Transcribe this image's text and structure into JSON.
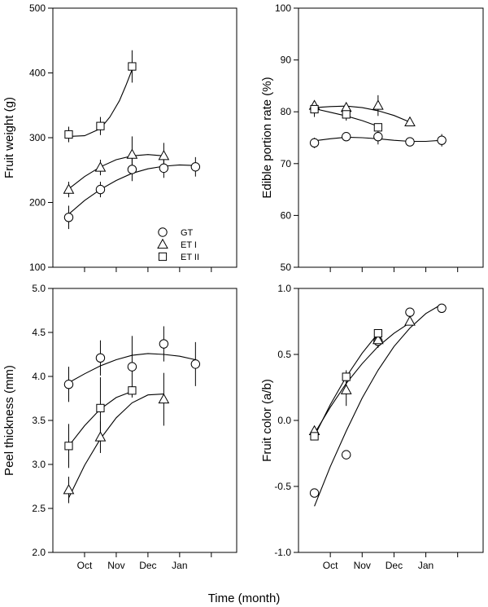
{
  "xlabel": "Time (month)",
  "legend": {
    "placement": "bottom-right of panel 1",
    "entries": [
      {
        "series": "GT",
        "marker": "circle"
      },
      {
        "series": "ET I",
        "marker": "triangle"
      },
      {
        "series": "ET II",
        "marker": "square"
      }
    ]
  },
  "chart_data": [
    {
      "type": "scatter",
      "ylabel": "Fruit weight (g)",
      "xlim": [
        0.5,
        6.3
      ],
      "ylim": [
        100,
        500
      ],
      "yticks": [
        100,
        200,
        300,
        400,
        500
      ],
      "xticks": [
        {
          "v": 1.5,
          "label": ""
        },
        {
          "v": 2.5,
          "label": ""
        },
        {
          "v": 3.5,
          "label": ""
        },
        {
          "v": 4.5,
          "label": ""
        },
        {
          "v": 5.5,
          "label": ""
        }
      ],
      "xticklabels": [],
      "series": [
        {
          "name": "GT",
          "marker": "circle",
          "x": [
            1,
            2,
            3,
            4,
            5
          ],
          "y": [
            177,
            220,
            251,
            253,
            255
          ],
          "err": [
            18,
            12,
            18,
            15,
            15
          ],
          "fit": [
            [
              1,
              182
            ],
            [
              1.5,
              203
            ],
            [
              2,
              220
            ],
            [
              2.5,
              234
            ],
            [
              3,
              245
            ],
            [
              3.5,
              252
            ],
            [
              4,
              256
            ],
            [
              4.5,
              258
            ],
            [
              5,
              257
            ]
          ]
        },
        {
          "name": "ET I",
          "marker": "triangle",
          "x": [
            1,
            2,
            3,
            4
          ],
          "y": [
            220,
            254,
            274,
            272
          ],
          "err": [
            12,
            12,
            28,
            20
          ],
          "fit": [
            [
              1,
              221
            ],
            [
              1.5,
              240
            ],
            [
              2,
              255
            ],
            [
              2.5,
              266
            ],
            [
              3,
              272
            ],
            [
              3.5,
              274
            ],
            [
              4,
              272
            ]
          ]
        },
        {
          "name": "ET II",
          "marker": "square",
          "x": [
            1,
            2,
            3
          ],
          "y": [
            305,
            318,
            410
          ],
          "err": [
            12,
            14,
            25
          ],
          "fit": [
            [
              1,
              302
            ],
            [
              1.5,
              303
            ],
            [
              2,
              314
            ],
            [
              2.3,
              332
            ],
            [
              2.6,
              357
            ],
            [
              2.8,
              380
            ],
            [
              3,
              405
            ]
          ]
        }
      ]
    },
    {
      "type": "scatter",
      "ylabel": "Edible portion rate (%)",
      "xlim": [
        0.5,
        6.3
      ],
      "ylim": [
        50,
        100
      ],
      "yticks": [
        50,
        60,
        70,
        80,
        90,
        100
      ],
      "xticks": [
        {
          "v": 1.5,
          "label": ""
        },
        {
          "v": 2.5,
          "label": ""
        },
        {
          "v": 3.5,
          "label": ""
        },
        {
          "v": 4.5,
          "label": ""
        },
        {
          "v": 5.5,
          "label": ""
        }
      ],
      "xticklabels": [],
      "series": [
        {
          "name": "GT",
          "marker": "circle",
          "x": [
            1,
            2,
            3,
            4,
            5
          ],
          "y": [
            74.0,
            75.2,
            75.2,
            74.2,
            74.5
          ],
          "err": [
            1.0,
            0.5,
            1.5,
            0.7,
            1.2
          ],
          "fit": [
            [
              1,
              74.4
            ],
            [
              1.5,
              74.8
            ],
            [
              2,
              75.1
            ],
            [
              2.5,
              75.0
            ],
            [
              3,
              74.8
            ],
            [
              3.5,
              74.5
            ],
            [
              4,
              74.3
            ],
            [
              4.5,
              74.3
            ],
            [
              5,
              74.5
            ]
          ]
        },
        {
          "name": "ET I",
          "marker": "triangle",
          "x": [
            1,
            2,
            3,
            4
          ],
          "y": [
            81.2,
            80.8,
            81.2,
            78.0
          ],
          "err": [
            0.8,
            0.6,
            2.0,
            0.6
          ],
          "fit": [
            [
              1,
              80.8
            ],
            [
              1.5,
              81.0
            ],
            [
              2,
              81.1
            ],
            [
              2.5,
              80.8
            ],
            [
              3,
              80.2
            ],
            [
              3.5,
              79.3
            ],
            [
              4,
              78.0
            ]
          ]
        },
        {
          "name": "ET II",
          "marker": "square",
          "x": [
            1,
            2,
            3
          ],
          "y": [
            80.5,
            79.5,
            77.0
          ],
          "err": [
            1.5,
            1.2,
            0.5
          ],
          "fit": [
            [
              1,
              80.6
            ],
            [
              1.5,
              79.9
            ],
            [
              2,
              79.2
            ],
            [
              2.5,
              78.3
            ],
            [
              3,
              77.2
            ]
          ]
        }
      ]
    },
    {
      "type": "scatter",
      "ylabel": "Peel thickness  (mm)",
      "xlim": [
        0.5,
        6.3
      ],
      "ylim": [
        2.0,
        5.0
      ],
      "yticks": [
        2.0,
        2.5,
        3.0,
        3.5,
        4.0,
        4.5,
        5.0
      ],
      "xticks": [
        {
          "v": 1.5,
          "label": "Oct"
        },
        {
          "v": 2.5,
          "label": "Nov"
        },
        {
          "v": 3.5,
          "label": "Dec"
        },
        {
          "v": 4.5,
          "label": "Jan"
        },
        {
          "v": 5.5,
          "label": ""
        }
      ],
      "xticklabels": [
        "Oct",
        "Nov",
        "Dec",
        "Jan"
      ],
      "series": [
        {
          "name": "GT",
          "marker": "circle",
          "x": [
            1,
            2,
            3,
            4,
            5
          ],
          "y": [
            3.91,
            4.21,
            4.11,
            4.37,
            4.14
          ],
          "err": [
            0.2,
            0.2,
            0.35,
            0.2,
            0.25
          ],
          "fit": [
            [
              1,
              3.93
            ],
            [
              1.5,
              4.03
            ],
            [
              2,
              4.12
            ],
            [
              2.5,
              4.19
            ],
            [
              3,
              4.24
            ],
            [
              3.5,
              4.26
            ],
            [
              4,
              4.25
            ],
            [
              4.5,
              4.23
            ],
            [
              5,
              4.19
            ]
          ]
        },
        {
          "name": "ET I",
          "marker": "triangle",
          "x": [
            1,
            2,
            4
          ],
          "y": [
            2.71,
            3.31,
            3.74
          ],
          "err": [
            0.15,
            0.18,
            0.3
          ],
          "fit": [
            [
              1,
              2.62
            ],
            [
              1.5,
              2.99
            ],
            [
              2,
              3.29
            ],
            [
              2.5,
              3.53
            ],
            [
              3,
              3.7
            ],
            [
              3.5,
              3.79
            ],
            [
              4,
              3.8
            ]
          ]
        },
        {
          "name": "ET II",
          "marker": "square",
          "x": [
            1,
            2,
            3
          ],
          "y": [
            3.21,
            3.64,
            3.84
          ],
          "err": [
            0.25,
            0.35,
            0.05
          ],
          "fit": [
            [
              1,
              3.21
            ],
            [
              1.5,
              3.44
            ],
            [
              2,
              3.63
            ],
            [
              2.5,
              3.76
            ],
            [
              3,
              3.83
            ]
          ]
        }
      ]
    },
    {
      "type": "scatter",
      "ylabel": "Fruit color (a/b)",
      "xlim": [
        0.5,
        6.3
      ],
      "ylim": [
        -1.0,
        1.0
      ],
      "yticks": [
        -1.0,
        -0.5,
        0.0,
        0.5,
        1.0
      ],
      "xticks": [
        {
          "v": 1.5,
          "label": "Oct"
        },
        {
          "v": 2.5,
          "label": "Nov"
        },
        {
          "v": 3.5,
          "label": "Dec"
        },
        {
          "v": 4.5,
          "label": "Jan"
        },
        {
          "v": 5.5,
          "label": ""
        }
      ],
      "xticklabels": [
        "Oct",
        "Nov",
        "Dec",
        "Jan"
      ],
      "series": [
        {
          "name": "GT",
          "marker": "circle",
          "x": [
            1,
            2,
            3,
            4,
            5
          ],
          "y": [
            -0.55,
            -0.26,
            0.6,
            0.82,
            0.85
          ],
          "err": [
            0,
            0.03,
            0.05,
            0.02,
            0.02
          ],
          "fit": [
            [
              1,
              -0.65
            ],
            [
              1.5,
              -0.35
            ],
            [
              2,
              -0.08
            ],
            [
              2.5,
              0.17
            ],
            [
              3,
              0.38
            ],
            [
              3.5,
              0.56
            ],
            [
              4,
              0.7
            ],
            [
              4.5,
              0.81
            ],
            [
              5,
              0.88
            ]
          ]
        },
        {
          "name": "ET I",
          "marker": "triangle",
          "x": [
            1,
            2,
            3,
            4
          ],
          "y": [
            -0.08,
            0.23,
            0.61,
            0.75
          ],
          "err": [
            0.03,
            0.12,
            0.04,
            0.02
          ],
          "fit": [
            [
              1,
              -0.1
            ],
            [
              1.5,
              0.1
            ],
            [
              2,
              0.28
            ],
            [
              2.5,
              0.43
            ],
            [
              3,
              0.56
            ],
            [
              3.5,
              0.66
            ],
            [
              4,
              0.74
            ]
          ]
        },
        {
          "name": "ET II",
          "marker": "square",
          "x": [
            1,
            2,
            3
          ],
          "y": [
            -0.12,
            0.33,
            0.66
          ],
          "err": [
            0.02,
            0.05,
            0.03
          ],
          "fit": [
            [
              1,
              -0.12
            ],
            [
              1.5,
              0.12
            ],
            [
              2,
              0.33
            ],
            [
              2.5,
              0.51
            ],
            [
              3,
              0.66
            ]
          ]
        }
      ]
    }
  ]
}
